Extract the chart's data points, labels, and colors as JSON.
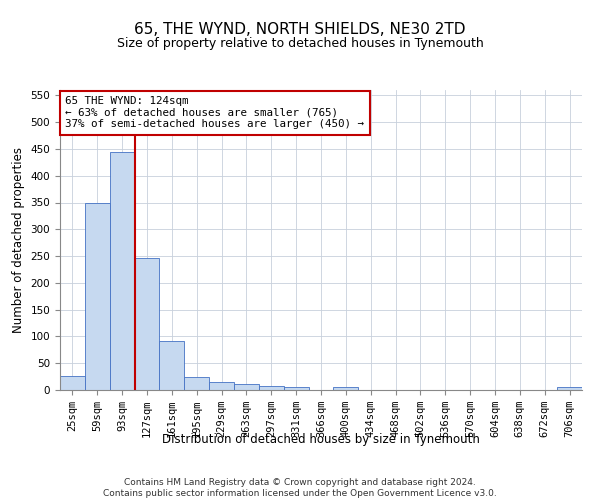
{
  "title": "65, THE WYND, NORTH SHIELDS, NE30 2TD",
  "subtitle": "Size of property relative to detached houses in Tynemouth",
  "xlabel": "Distribution of detached houses by size in Tynemouth",
  "ylabel": "Number of detached properties",
  "categories": [
    "25sqm",
    "59sqm",
    "93sqm",
    "127sqm",
    "161sqm",
    "195sqm",
    "229sqm",
    "263sqm",
    "297sqm",
    "331sqm",
    "366sqm",
    "400sqm",
    "434sqm",
    "468sqm",
    "502sqm",
    "536sqm",
    "570sqm",
    "604sqm",
    "638sqm",
    "672sqm",
    "706sqm"
  ],
  "values": [
    27,
    350,
    445,
    247,
    92,
    25,
    15,
    12,
    8,
    6,
    0,
    5,
    0,
    0,
    0,
    0,
    0,
    0,
    0,
    0,
    5
  ],
  "bar_color": "#c6d9f0",
  "bar_edge_color": "#4472c4",
  "vline_color": "#c00000",
  "annotation_text": "65 THE WYND: 124sqm\n← 63% of detached houses are smaller (765)\n37% of semi-detached houses are larger (450) →",
  "annotation_box_color": "#ffffff",
  "annotation_box_edge": "#c00000",
  "ylim": [
    0,
    560
  ],
  "yticks": [
    0,
    50,
    100,
    150,
    200,
    250,
    300,
    350,
    400,
    450,
    500,
    550
  ],
  "footer": "Contains HM Land Registry data © Crown copyright and database right 2024.\nContains public sector information licensed under the Open Government Licence v3.0.",
  "bg_color": "#ffffff",
  "grid_color": "#c8d0dc",
  "title_fontsize": 11,
  "subtitle_fontsize": 9,
  "axis_label_fontsize": 8.5,
  "tick_fontsize": 7.5,
  "footer_fontsize": 6.5,
  "vline_bar_index": 3
}
